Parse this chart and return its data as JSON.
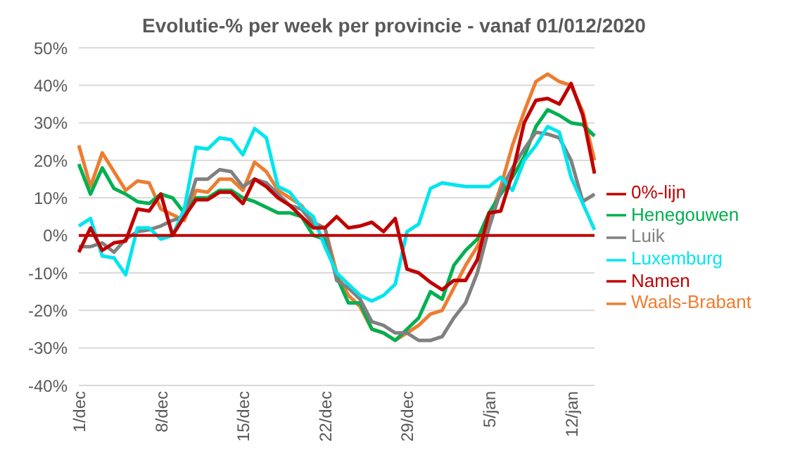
{
  "chart_data": {
    "type": "line",
    "title": "Evolutie-% per week per provincie - vanaf 01/012/2020",
    "categories": [
      "1/dec",
      null,
      null,
      null,
      null,
      null,
      null,
      "8/dec",
      null,
      null,
      null,
      null,
      null,
      null,
      "15/dec",
      null,
      null,
      null,
      null,
      null,
      null,
      "22/dec",
      null,
      null,
      null,
      null,
      null,
      null,
      "29/dec",
      null,
      null,
      null,
      null,
      null,
      null,
      "5/jan",
      null,
      null,
      null,
      null,
      null,
      null,
      "12/jan",
      null,
      null
    ],
    "series": [
      {
        "name": "Waals-Brabant",
        "color": "#ed7d31",
        "values": [
          24,
          13,
          22,
          17,
          12,
          14.5,
          14,
          7,
          5.5,
          4,
          12,
          11.5,
          15,
          15,
          12,
          19.5,
          17,
          12,
          10,
          8,
          3.5,
          2,
          -10,
          -16,
          -19,
          -25,
          -26,
          -28,
          -26,
          -24,
          -21,
          -20,
          -14,
          -8,
          -3,
          4,
          13,
          24,
          33,
          41,
          43,
          41,
          40,
          33,
          20
        ]
      },
      {
        "name": "Henegouwen",
        "color": "#00b050",
        "values": [
          19,
          11,
          18,
          12.5,
          11,
          9,
          8.5,
          11,
          10,
          6,
          10,
          10,
          12,
          12,
          10,
          9,
          7.5,
          6,
          6,
          5,
          0,
          -1,
          -11,
          -18,
          -18,
          -25,
          -26,
          -28,
          -25,
          -22,
          -15,
          -17,
          -8,
          -4,
          -1,
          6,
          11,
          15.5,
          21,
          29,
          33.5,
          32,
          30,
          29.5,
          26.5
        ]
      },
      {
        "name": "Luik",
        "color": "#808080",
        "values": [
          -3,
          -3,
          -2,
          -4.5,
          -1,
          1,
          1.5,
          2.5,
          4,
          5,
          15,
          15,
          17.5,
          17,
          13,
          15,
          14,
          11,
          8,
          7,
          3,
          2,
          -12,
          -14,
          -17,
          -23,
          -24,
          -26,
          -26,
          -28,
          -28,
          -27,
          -22,
          -18,
          -10,
          2,
          12,
          18,
          23,
          27.5,
          27,
          26,
          20,
          9,
          11
        ]
      },
      {
        "name": "Luxemburg",
        "color": "#00e5ee",
        "values": [
          2.5,
          4.5,
          -5.5,
          -6,
          -10.5,
          2,
          2,
          -1,
          0,
          7,
          23.5,
          23,
          26,
          25.5,
          21.5,
          28.5,
          26,
          13,
          11.5,
          7.5,
          5,
          -3,
          -10,
          -13,
          -16,
          -17.5,
          -16,
          -13,
          1,
          3,
          12.5,
          14,
          13.5,
          13,
          13,
          13,
          15.5,
          12,
          20,
          24,
          29,
          27.5,
          15.5,
          8.5,
          1.5
        ]
      },
      {
        "name": "Namen",
        "color": "#c00000",
        "values": [
          -4.5,
          2,
          -4,
          -2,
          -1.5,
          7,
          6.5,
          11,
          0,
          5,
          9.5,
          9.5,
          11.5,
          11.5,
          8.5,
          15,
          13,
          10,
          8,
          5,
          2,
          2,
          5,
          2,
          2.5,
          3.5,
          1,
          4.5,
          -9,
          -10,
          -12.5,
          -14.5,
          -12,
          -12,
          -6.5,
          6,
          6.5,
          16.5,
          30,
          36,
          36.5,
          35,
          40.5,
          32,
          16.5
        ]
      },
      {
        "name": "0%-lijn",
        "color": "#c00000",
        "values": [
          0,
          0,
          0,
          0,
          0,
          0,
          0,
          0,
          0,
          0,
          0,
          0,
          0,
          0,
          0,
          0,
          0,
          0,
          0,
          0,
          0,
          0,
          0,
          0,
          0,
          0,
          0,
          0,
          0,
          0,
          0,
          0,
          0,
          0,
          0,
          0,
          0,
          0,
          0,
          0,
          0,
          0,
          0,
          0,
          0
        ]
      }
    ],
    "ylim": [
      -40,
      50
    ],
    "yticks": [
      {
        "value": -40,
        "label": "-40%"
      },
      {
        "value": -30,
        "label": "-30%"
      },
      {
        "value": -20,
        "label": "-20%"
      },
      {
        "value": -10,
        "label": "-10%"
      },
      {
        "value": 0,
        "label": "0%"
      },
      {
        "value": 10,
        "label": "10%"
      },
      {
        "value": 20,
        "label": "20%"
      },
      {
        "value": 30,
        "label": "30%"
      },
      {
        "value": 40,
        "label": "40%"
      },
      {
        "value": 50,
        "label": "50%"
      }
    ],
    "grid": "y",
    "legend": "right",
    "marker": "none",
    "line_style": "solid"
  }
}
